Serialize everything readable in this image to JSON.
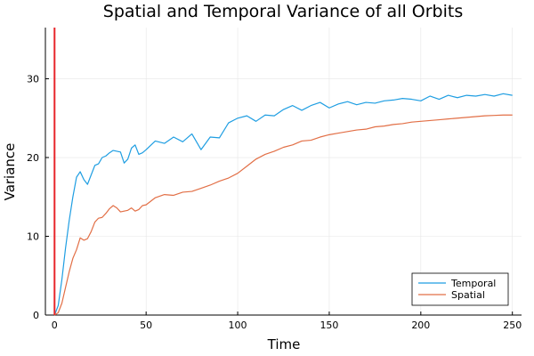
{
  "chart_data": {
    "type": "line",
    "title": "Spatial and Temporal Variance of all Orbits",
    "xlabel": "Time",
    "ylabel": "Variance",
    "xlim": [
      -5,
      255
    ],
    "ylim": [
      0,
      36.5
    ],
    "x_ticks": [
      0,
      50,
      100,
      150,
      200,
      250
    ],
    "y_ticks": [
      0,
      10,
      20,
      30
    ],
    "grid": true,
    "legend_position": "bottom-right",
    "vline": {
      "x": 0,
      "color": "#e8262b"
    },
    "series": [
      {
        "name": "Temporal",
        "color": "#1f9ee2",
        "x": [
          0,
          2,
          4,
          6,
          8,
          10,
          12,
          14,
          16,
          18,
          20,
          22,
          24,
          26,
          28,
          30,
          32,
          34,
          36,
          38,
          40,
          42,
          44,
          46,
          48,
          50,
          55,
          60,
          65,
          70,
          75,
          78,
          80,
          85,
          90,
          95,
          100,
          105,
          110,
          115,
          120,
          125,
          130,
          135,
          140,
          145,
          150,
          155,
          160,
          165,
          170,
          175,
          180,
          185,
          190,
          195,
          200,
          205,
          210,
          215,
          220,
          225,
          230,
          235,
          240,
          245,
          250
        ],
        "values": [
          0,
          1.2,
          4.5,
          8.5,
          12,
          15,
          17.5,
          18.2,
          17.2,
          16.6,
          17.8,
          19,
          19.2,
          20,
          20.2,
          20.6,
          20.9,
          20.8,
          20.7,
          19.3,
          19.8,
          21.2,
          21.6,
          20.4,
          20.6,
          21.0,
          22.1,
          21.8,
          22.6,
          22.0,
          23.0,
          21.8,
          21.0,
          22.6,
          22.5,
          24.4,
          25.0,
          25.3,
          24.6,
          25.4,
          25.3,
          26.1,
          26.6,
          26.0,
          26.6,
          27.0,
          26.3,
          26.8,
          27.1,
          26.7,
          27.0,
          26.9,
          27.2,
          27.3,
          27.5,
          27.4,
          27.2,
          27.8,
          27.4,
          27.9,
          27.6,
          27.9,
          27.8,
          28.0,
          27.8,
          28.1,
          27.9
        ]
      },
      {
        "name": "Spatial",
        "color": "#e26f46",
        "x": [
          0,
          2,
          4,
          6,
          8,
          10,
          12,
          14,
          16,
          18,
          20,
          22,
          24,
          26,
          28,
          30,
          32,
          34,
          36,
          38,
          40,
          42,
          44,
          46,
          48,
          50,
          55,
          60,
          65,
          70,
          75,
          80,
          85,
          90,
          95,
          100,
          105,
          110,
          115,
          120,
          125,
          130,
          135,
          140,
          145,
          150,
          155,
          160,
          165,
          170,
          175,
          180,
          185,
          190,
          195,
          200,
          205,
          210,
          215,
          220,
          225,
          230,
          235,
          240,
          245,
          250
        ],
        "values": [
          0,
          0.3,
          1.5,
          3.5,
          5.5,
          7.2,
          8.3,
          9.8,
          9.5,
          9.7,
          10.6,
          11.8,
          12.3,
          12.4,
          12.9,
          13.5,
          13.9,
          13.6,
          13.1,
          13.2,
          13.3,
          13.6,
          13.2,
          13.4,
          13.9,
          14.0,
          14.9,
          15.3,
          15.2,
          15.6,
          15.7,
          16.1,
          16.5,
          17.0,
          17.4,
          18.0,
          18.9,
          19.8,
          20.4,
          20.8,
          21.3,
          21.6,
          22.1,
          22.2,
          22.6,
          22.9,
          23.1,
          23.3,
          23.5,
          23.6,
          23.9,
          24.0,
          24.2,
          24.3,
          24.5,
          24.6,
          24.7,
          24.8,
          24.9,
          25.0,
          25.1,
          25.2,
          25.3,
          25.35,
          25.4,
          25.4
        ]
      }
    ]
  }
}
